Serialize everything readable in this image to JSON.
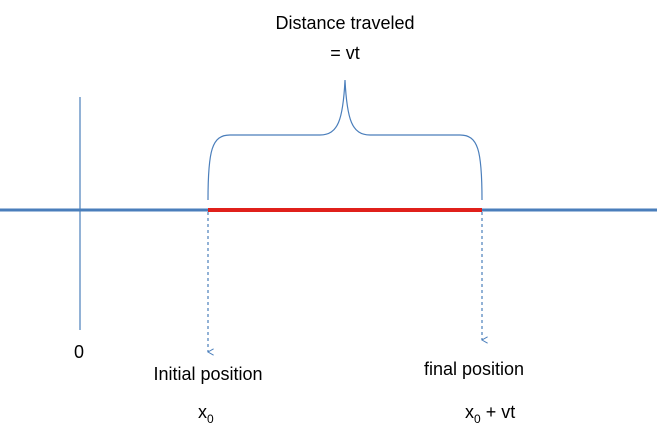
{
  "brace_label": {
    "line1": "Distance traveled",
    "line2": "= vt"
  },
  "origin_label": "0",
  "initial": {
    "label": "Initial position",
    "symbol": {
      "base": "x",
      "sub": "0"
    }
  },
  "final": {
    "label": "final position",
    "symbol": {
      "base": "x",
      "sub": "0",
      "rest": " + vt"
    }
  }
}
